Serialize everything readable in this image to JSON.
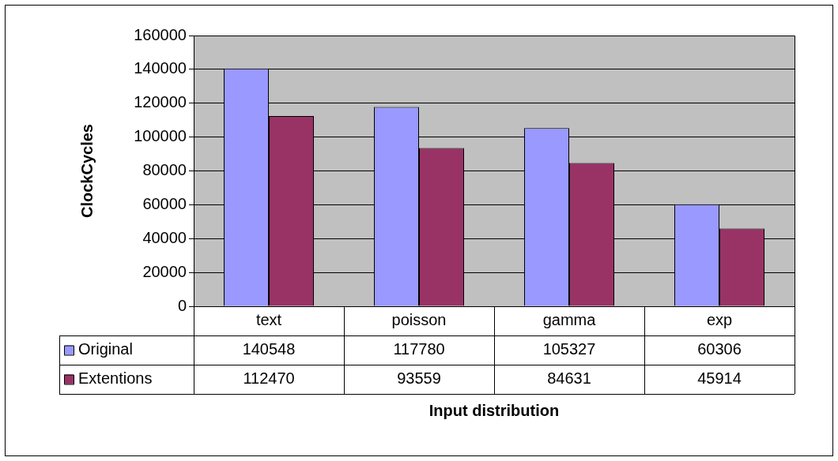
{
  "chart_data": {
    "type": "bar",
    "xlabel": "Input distribution",
    "ylabel": "ClockCycles",
    "categories": [
      "text",
      "poisson",
      "gamma",
      "exp"
    ],
    "series": [
      {
        "name": "Original",
        "color": "#9999ff",
        "values": [
          140548,
          117780,
          105327,
          60306
        ]
      },
      {
        "name": "Extentions",
        "color": "#993366",
        "values": [
          112470,
          93559,
          84631,
          45914
        ]
      }
    ],
    "ylim": [
      0,
      160000
    ],
    "yticks": [
      0,
      20000,
      40000,
      60000,
      80000,
      100000,
      120000,
      140000,
      160000
    ],
    "grid": "y",
    "legend": "bottom",
    "data_labels": true
  }
}
